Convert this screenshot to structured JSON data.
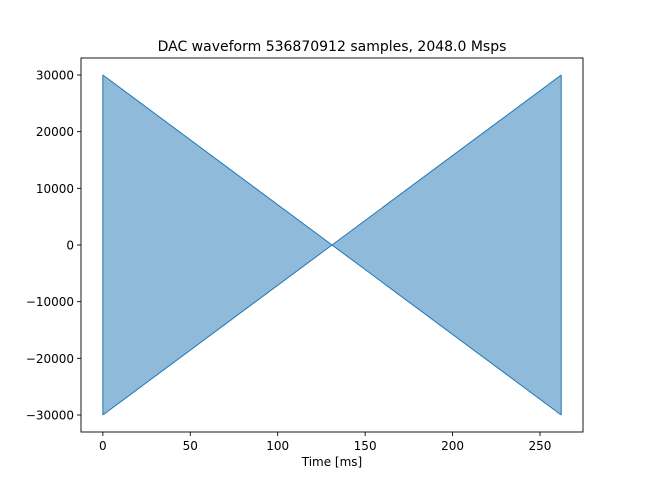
{
  "chart_data": {
    "type": "area",
    "title": "DAC waveform 536870912 samples, 2048.0 Msps",
    "xlabel": "Time [ms]",
    "ylabel": "",
    "xlim": [
      -12.5,
      274.6
    ],
    "ylim": [
      -33000,
      33000
    ],
    "xticks": [
      0,
      50,
      100,
      150,
      200,
      250
    ],
    "yticks": [
      -30000,
      -20000,
      -10000,
      0,
      10000,
      20000,
      30000
    ],
    "xtick_labels": [
      "0",
      "50",
      "100",
      "150",
      "200",
      "250"
    ],
    "ytick_labels": [
      "−30000",
      "−20000",
      "−10000",
      "0",
      "10000",
      "20000",
      "30000"
    ],
    "grid": false,
    "envelope": {
      "x": [
        0,
        131.07,
        262.14
      ],
      "upper": [
        30000,
        0,
        30000
      ],
      "lower": [
        -30000,
        0,
        -30000
      ]
    },
    "colors": {
      "fill": "#8fbad9",
      "line": "#1f77b4"
    }
  }
}
